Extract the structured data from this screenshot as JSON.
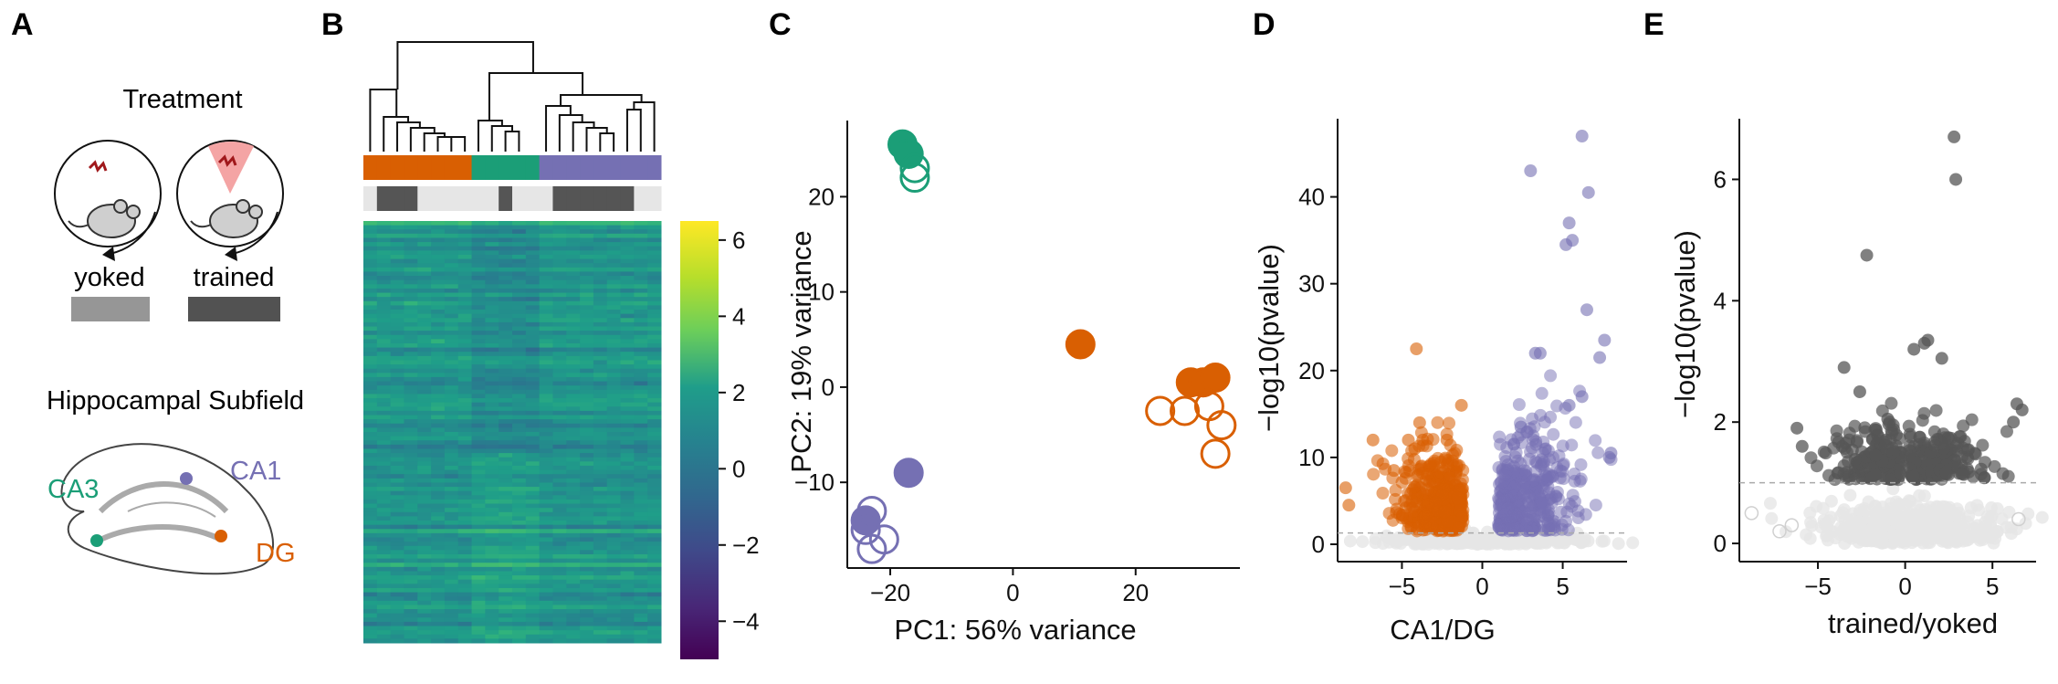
{
  "panels": {
    "A": {
      "letter": "A",
      "treatment_title": "Treatment",
      "yoked_label": "yoked",
      "trained_label": "trained",
      "subfield_title": "Hippocampal Subfield",
      "ca3_label": "CA3",
      "ca1_label": "CA1",
      "dg_label": "DG"
    },
    "B": {
      "letter": "B",
      "colorbar_ticks": [
        "6",
        "4",
        "2",
        "0",
        "−2",
        "−4"
      ]
    },
    "C": {
      "letter": "C",
      "xlabel": "PC1: 56% variance",
      "ylabel": "PC2: 19% variance",
      "xticks": [
        "−20",
        "0",
        "20"
      ],
      "yticks": [
        "20",
        "10",
        "0",
        "−10"
      ]
    },
    "D": {
      "letter": "D",
      "xlabel": "CA1/DG",
      "ylabel": "−log10(pvalue)",
      "xticks": [
        "−5",
        "0",
        "5"
      ],
      "yticks": [
        "40",
        "30",
        "20",
        "10",
        "0"
      ]
    },
    "E": {
      "letter": "E",
      "xlabel": "trained/yoked",
      "ylabel": "−log10(pvalue)",
      "xticks": [
        "−5",
        "0",
        "5"
      ],
      "yticks": [
        "6",
        "4",
        "2",
        "0"
      ]
    }
  },
  "colors": {
    "CA1": "#7570b3",
    "CA3": "#1b9e77",
    "DG": "#d95f02",
    "yoked": "#969696",
    "trained": "#525252",
    "nonsig": "#e6e6e6",
    "sig_grey": "#555555"
  },
  "chart_data": [
    {
      "panel": "B",
      "type": "heatmap",
      "colorscale": "viridis",
      "value_range": [
        -5,
        6.5
      ],
      "columns_subfield": [
        "DG",
        "DG",
        "DG",
        "DG",
        "DG",
        "DG",
        "DG",
        "DG",
        "CA3",
        "CA3",
        "CA3",
        "CA3",
        "CA3",
        "CA1",
        "CA1",
        "CA1",
        "CA1",
        "CA1",
        "CA1",
        "CA1",
        "CA1",
        "CA1"
      ],
      "columns_treatment": [
        "yoked",
        "trained",
        "trained",
        "trained",
        "yoked",
        "yoked",
        "yoked",
        "yoked",
        "yoked",
        "yoked",
        "trained",
        "yoked",
        "yoked",
        "yoked",
        "trained",
        "trained",
        "trained",
        "trained",
        "trained",
        "trained",
        "yoked",
        "yoked"
      ]
    },
    {
      "panel": "C",
      "type": "scatter",
      "xlim": [
        -27,
        37
      ],
      "ylim": [
        -19,
        28
      ],
      "series": [
        {
          "group": "CA3",
          "filled": true,
          "x": [
            -18,
            -17
          ],
          "y": [
            25.5,
            24.5
          ]
        },
        {
          "group": "CA3",
          "filled": false,
          "x": [
            -16,
            -16
          ],
          "y": [
            23,
            22
          ]
        },
        {
          "group": "DG",
          "filled": true,
          "x": [
            11,
            29,
            31,
            33
          ],
          "y": [
            4.5,
            0.5,
            0.5,
            1
          ]
        },
        {
          "group": "DG",
          "filled": false,
          "x": [
            24,
            28,
            32,
            34,
            33
          ],
          "y": [
            -2.5,
            -2.5,
            -2,
            -4,
            -7
          ]
        },
        {
          "group": "CA1",
          "filled": true,
          "x": [
            -17,
            -24
          ],
          "y": [
            -9,
            -14
          ]
        },
        {
          "group": "CA1",
          "filled": false,
          "x": [
            -23,
            -24,
            -21,
            -23
          ],
          "y": [
            -13,
            -15,
            -16,
            -17
          ]
        }
      ]
    },
    {
      "panel": "D",
      "type": "scatter",
      "xlim": [
        -9,
        9
      ],
      "ylim": [
        -2,
        49
      ],
      "threshold": 1.3,
      "series": [
        {
          "group": "DG",
          "x": [
            -8.5,
            -8.3,
            -4.1,
            -3.9,
            -4.6,
            -4.2,
            -3.7,
            -6.8,
            -1.3,
            -2.2,
            -5.5,
            -3.0
          ],
          "y": [
            6.5,
            4.5,
            22.5,
            14,
            12,
            11,
            12,
            12,
            16,
            12,
            8.5,
            9
          ]
        },
        {
          "group": "CA1",
          "x": [
            6.2,
            3.0,
            6.6,
            5.4,
            5.6,
            5.2,
            6.5,
            3.3,
            3.6,
            7.6,
            7.3,
            8.0,
            7.9,
            5.4,
            6.2,
            2.4
          ],
          "y": [
            47,
            43,
            40.5,
            37,
            35,
            34.5,
            27,
            22,
            22,
            23.5,
            21.5,
            10.5,
            10,
            16,
            17,
            13.5
          ]
        }
      ]
    },
    {
      "panel": "E",
      "type": "scatter",
      "xlim": [
        -9.5,
        7.5
      ],
      "ylim": [
        -0.3,
        7
      ],
      "threshold": 1.0,
      "series": [
        {
          "group": "significant",
          "x": [
            2.8,
            2.9,
            -2.2,
            -3.5,
            -6.2,
            -2.6,
            1.1,
            1.3,
            2.1,
            0.5,
            -5.9,
            6.4,
            6.7,
            6.2,
            -1.0
          ],
          "y": [
            6.7,
            6.0,
            4.75,
            2.9,
            1.9,
            2.5,
            3.3,
            3.35,
            3.05,
            3.2,
            1.6,
            2.3,
            2.2,
            2.0,
            2.05
          ]
        },
        {
          "group": "nonsignificant",
          "x": [
            -8.8,
            -6.5,
            6.5,
            -7.2
          ],
          "y": [
            0.5,
            0.3,
            0.4,
            0.2
          ]
        }
      ]
    }
  ]
}
